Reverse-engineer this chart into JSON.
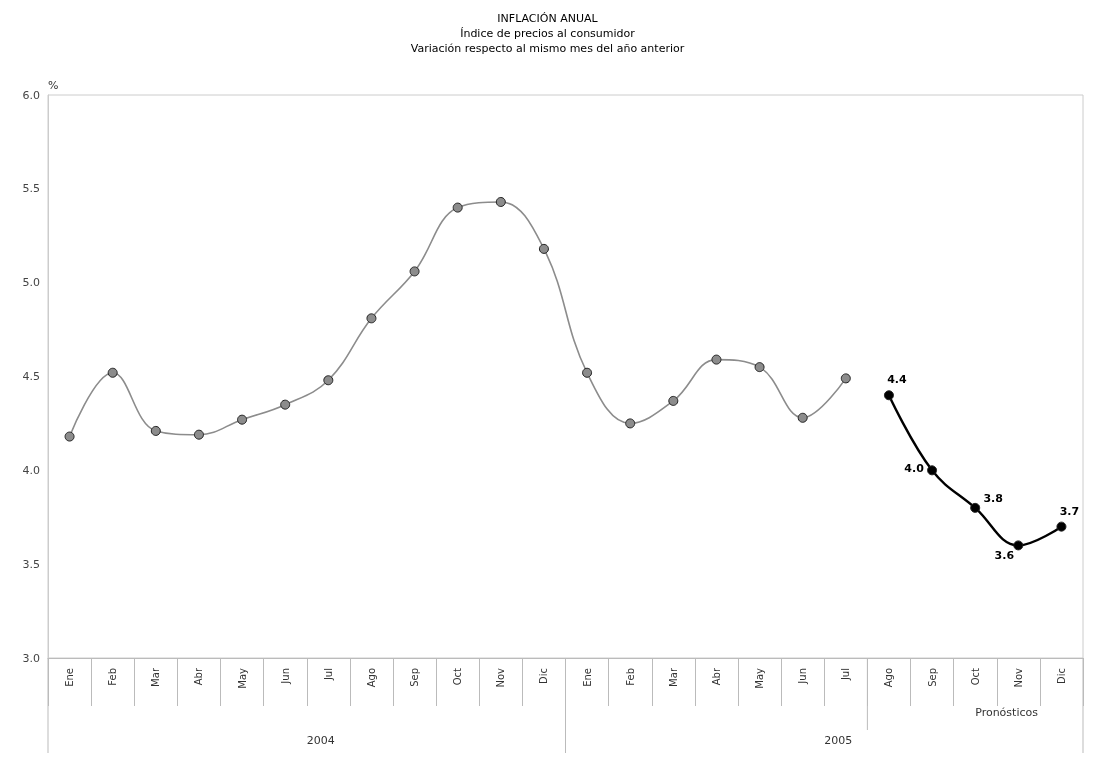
{
  "chart_data": {
    "type": "line",
    "title": "INFLACIÓN ANUAL",
    "subtitle": "Índice de precios al consumidor\nVariación respecto al mismo mes del año anterior",
    "ylabel": "%",
    "categories": [
      "Ene",
      "Feb",
      "Mar",
      "Abr",
      "May",
      "Jun",
      "Jul",
      "Ago",
      "Sep",
      "Oct",
      "Nov",
      "Dic",
      "Ene",
      "Feb",
      "Mar",
      "Abr",
      "May",
      "Jun",
      "Jul",
      "Ago",
      "Sep",
      "Oct",
      "Nov",
      "Dic"
    ],
    "series": [
      {
        "color": "#8c8c8c",
        "values": [
          4.18,
          4.52,
          4.21,
          4.19,
          4.27,
          4.35,
          4.48,
          4.81,
          5.06,
          5.4,
          5.43,
          5.18,
          4.52,
          4.25,
          4.37,
          4.59,
          4.55,
          4.28,
          4.49,
          null,
          null,
          null,
          null,
          null
        ]
      },
      {
        "color": "#000000",
        "values": [
          null,
          null,
          null,
          null,
          null,
          null,
          null,
          null,
          null,
          null,
          null,
          null,
          null,
          null,
          null,
          null,
          null,
          null,
          null,
          4.4,
          4.0,
          3.8,
          3.6,
          3.7
        ],
        "value_labels": [
          null,
          null,
          null,
          null,
          null,
          null,
          null,
          null,
          null,
          null,
          null,
          null,
          null,
          null,
          null,
          null,
          null,
          null,
          null,
          "4.4",
          "4.0",
          "3.8",
          "3.6",
          "3.7"
        ]
      }
    ],
    "ylim": [
      3,
      6
    ],
    "yticks": [
      {
        "value": 3,
        "label": "3.0"
      },
      {
        "value": 3.5,
        "label": "3.5"
      },
      {
        "value": 4,
        "label": "4.0"
      },
      {
        "value": 4.5,
        "label": "4.5"
      },
      {
        "value": 5,
        "label": "5.0"
      },
      {
        "value": 5.5,
        "label": "5.5"
      },
      {
        "value": 6,
        "label": "6.0"
      }
    ],
    "grid": false,
    "marker": "circle",
    "line_style": "solid",
    "annotations": [
      "2004",
      "2005",
      "Pronósticos"
    ]
  }
}
